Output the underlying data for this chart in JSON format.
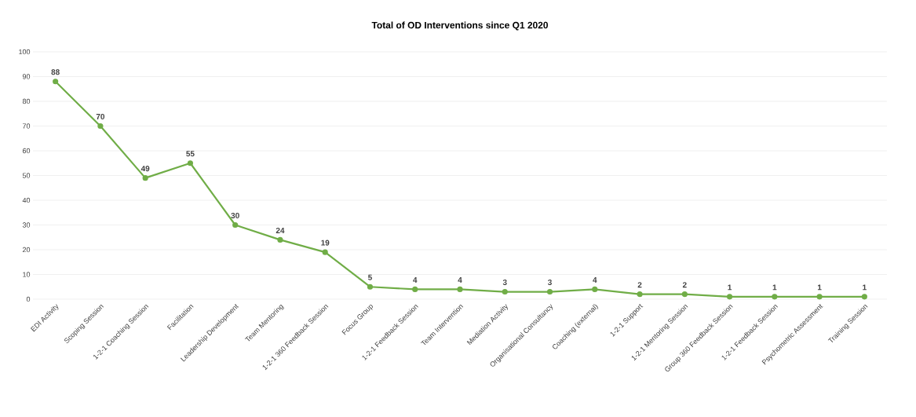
{
  "chart_data": {
    "type": "line",
    "title": "Total of OD Interventions since Q1 2020",
    "categories": [
      "EDI Activity",
      "Scoping Session",
      "1-2-1 Coaching Session",
      "Facilitation",
      "Leadership Development",
      "Team Mentoring",
      "1-2-1 360 Feedback Session",
      "Focus Group",
      "1-2-1 Feedback Session",
      "Team Intervention",
      "Mediation Activity",
      "Organisational Consultancy",
      "Coaching (external)",
      "1-2-1 Support",
      "1-2-1 Mentoring Session",
      "Group 360 Feedback Session",
      "1-2-1 Feedback Session",
      "Psychometric Assessment",
      "Training Session"
    ],
    "values": [
      88,
      70,
      49,
      55,
      30,
      24,
      19,
      5,
      4,
      4,
      3,
      3,
      4,
      2,
      2,
      1,
      1,
      1,
      1
    ],
    "color": "#70ad47",
    "marker": "circle",
    "line_style": "solid",
    "data_labels": true,
    "grid": "y",
    "ylim": [
      0,
      100
    ],
    "yticks": [
      0,
      10,
      20,
      30,
      40,
      50,
      60,
      70,
      80,
      90,
      100
    ]
  }
}
